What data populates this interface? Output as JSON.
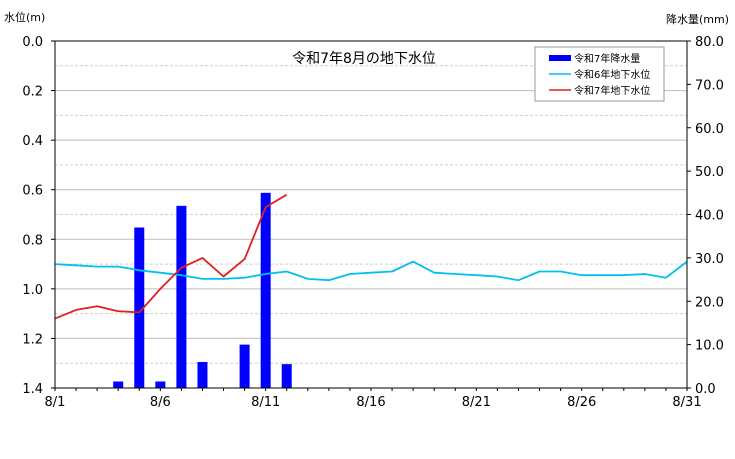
{
  "chart_data": {
    "type": "bar+line",
    "title": "令和7年8月の地下水位",
    "y_left_label": "水位(m)",
    "y_right_label": "降水量(mm)",
    "x_axis": {
      "min": 1,
      "max": 31,
      "tick_values": [
        1,
        6,
        11,
        16,
        21,
        26,
        31
      ],
      "tick_labels": [
        "8/1",
        "8/6",
        "8/11",
        "8/16",
        "8/21",
        "8/26",
        "8/31"
      ]
    },
    "y_left": {
      "min": 0.0,
      "max": 1.4,
      "inverted": true,
      "tick_values": [
        0.0,
        0.2,
        0.4,
        0.6,
        0.8,
        1.0,
        1.2,
        1.4
      ],
      "tick_labels": [
        "0.0",
        "0.2",
        "0.4",
        "0.6",
        "0.8",
        "1.0",
        "1.2",
        "1.4"
      ]
    },
    "y_right": {
      "min": 0,
      "max": 80,
      "tick_values": [
        0,
        10,
        20,
        30,
        40,
        50,
        60,
        70,
        80
      ],
      "tick_labels": [
        "0.0",
        "10.0",
        "20.0",
        "30.0",
        "40.0",
        "50.0",
        "60.0",
        "70.0",
        "80.0"
      ]
    },
    "gridlines": "horizontal, dashed minor every 0.1 m",
    "legend_position": "top-right",
    "series": [
      {
        "name": "令和7年降水量",
        "kind": "bar",
        "axis": "right",
        "color": "#0000ff",
        "x": [
          4,
          5,
          6,
          7,
          8,
          10,
          11,
          12
        ],
        "values": [
          1.5,
          37.0,
          1.5,
          42.0,
          6.0,
          10.0,
          45.0,
          5.5
        ]
      },
      {
        "name": "令和6年地下水位",
        "kind": "line",
        "axis": "left",
        "color": "#00c0f0",
        "x": [
          1,
          2,
          3,
          4,
          5,
          6,
          7,
          8,
          9,
          10,
          11,
          12,
          13,
          14,
          15,
          16,
          17,
          18,
          19,
          20,
          21,
          22,
          23,
          24,
          25,
          26,
          27,
          28,
          29,
          30,
          31
        ],
        "values": [
          0.9,
          0.905,
          0.91,
          0.91,
          0.925,
          0.935,
          0.945,
          0.96,
          0.96,
          0.955,
          0.94,
          0.93,
          0.96,
          0.965,
          0.94,
          0.935,
          0.93,
          0.89,
          0.935,
          0.94,
          0.945,
          0.95,
          0.965,
          0.93,
          0.93,
          0.945,
          0.945,
          0.945,
          0.94,
          0.955,
          0.89
        ]
      },
      {
        "name": "令和7年地下水位",
        "kind": "line",
        "axis": "left",
        "color": "#e02020",
        "x": [
          1,
          2,
          3,
          4,
          5,
          6,
          7,
          8,
          9,
          10,
          11,
          12
        ],
        "values": [
          1.12,
          1.085,
          1.07,
          1.09,
          1.095,
          1.0,
          0.915,
          0.875,
          0.95,
          0.88,
          0.67,
          0.62
        ]
      }
    ]
  }
}
